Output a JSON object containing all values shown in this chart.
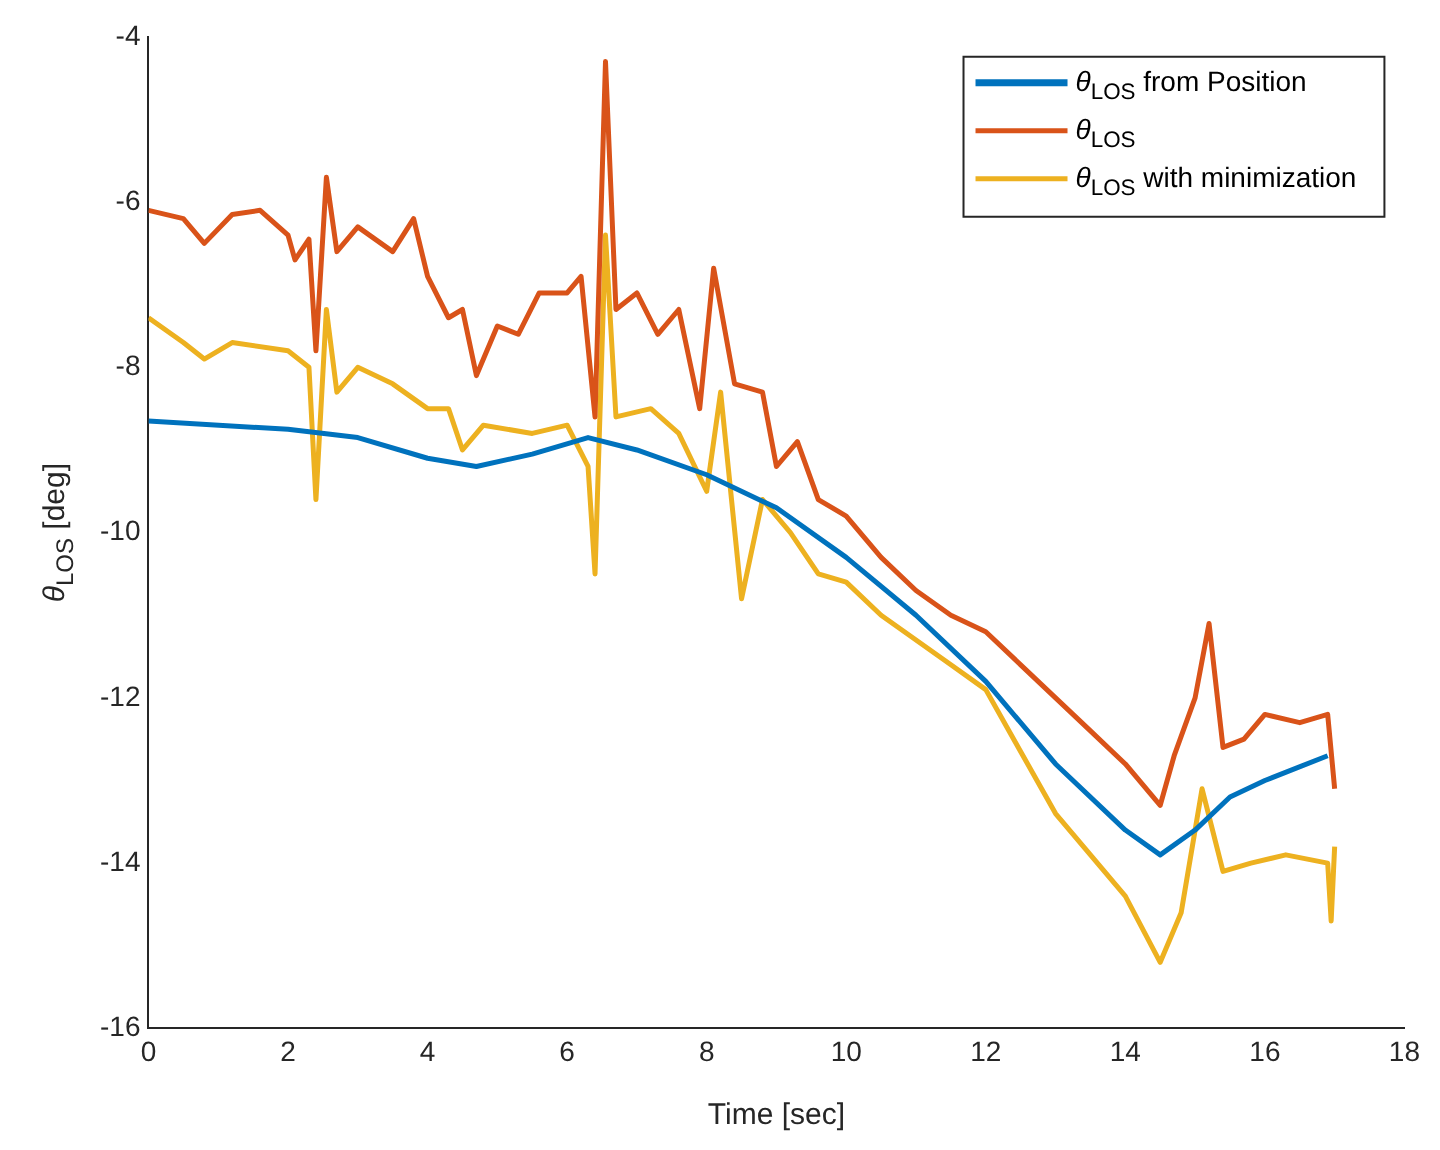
{
  "chart_data": {
    "type": "line",
    "xlabel": "Time [sec]",
    "ylabel": "θ$_{LOS}$ [deg]",
    "xlim": [
      0,
      18
    ],
    "xticks": [
      0,
      2,
      4,
      6,
      8,
      10,
      12,
      14,
      16,
      18
    ],
    "ylim": [
      -16,
      -4
    ],
    "yticks": [
      -16,
      -14,
      -12,
      -10,
      -8,
      -6,
      -4
    ],
    "grid": false,
    "legend": "top right",
    "marker": "none",
    "line_style": "solid",
    "series": [
      {
        "name": "θ$_{LOS}$ from Position",
        "color": "#0072bd",
        "x": [
          0,
          2,
          3,
          4,
          4.7,
          5.5,
          6.3,
          7,
          8,
          9,
          10,
          11,
          12,
          13,
          14,
          14.5,
          15,
          15.5,
          16,
          16.9
        ],
        "values": [
          -8.65,
          -8.75,
          -8.85,
          -9.1,
          -9.2,
          -9.05,
          -8.85,
          -9.0,
          -9.3,
          -9.7,
          -10.3,
          -11.0,
          -11.8,
          -12.8,
          -13.6,
          -13.9,
          -13.6,
          -13.2,
          -13.0,
          -12.7
        ]
      },
      {
        "name": "θ$_{LOS}$",
        "color": "#d95319",
        "x": [
          0,
          0.5,
          0.8,
          1.2,
          1.6,
          2.0,
          2.1,
          2.3,
          2.4,
          2.55,
          2.7,
          3,
          3.5,
          3.8,
          4.0,
          4.3,
          4.5,
          4.7,
          5.0,
          5.3,
          5.6,
          6.0,
          6.2,
          6.4,
          6.55,
          6.7,
          7.0,
          7.3,
          7.6,
          7.9,
          8.1,
          8.4,
          8.8,
          9.0,
          9.3,
          9.6,
          10,
          10.5,
          11,
          11.5,
          12,
          12.5,
          13,
          13.5,
          14,
          14.5,
          14.7,
          15.0,
          15.2,
          15.4,
          15.7,
          16.0,
          16.5,
          16.9,
          17.0
        ],
        "values": [
          -6.1,
          -6.2,
          -6.5,
          -6.15,
          -6.1,
          -6.4,
          -6.7,
          -6.45,
          -7.8,
          -5.7,
          -6.6,
          -6.3,
          -6.6,
          -6.2,
          -6.9,
          -7.4,
          -7.3,
          -8.1,
          -7.5,
          -7.6,
          -7.1,
          -7.1,
          -6.9,
          -8.6,
          -4.3,
          -7.3,
          -7.1,
          -7.6,
          -7.3,
          -8.5,
          -6.8,
          -8.2,
          -8.3,
          -9.2,
          -8.9,
          -9.6,
          -9.8,
          -10.3,
          -10.7,
          -11.0,
          -11.2,
          -11.6,
          -12.0,
          -12.4,
          -12.8,
          -13.3,
          -12.7,
          -12.0,
          -11.1,
          -12.6,
          -12.5,
          -12.2,
          -12.3,
          -12.2,
          -13.1
        ]
      },
      {
        "name": "θ$_{LOS}$ with minimization",
        "color": "#edb120",
        "x": [
          0,
          0.5,
          0.8,
          1.2,
          2.0,
          2.3,
          2.4,
          2.55,
          2.7,
          3.0,
          3.5,
          4.0,
          4.3,
          4.5,
          4.8,
          5.5,
          6.0,
          6.3,
          6.4,
          6.55,
          6.7,
          7.2,
          7.6,
          8.0,
          8.2,
          8.5,
          8.8,
          9.2,
          9.6,
          10,
          10.5,
          11,
          11.5,
          12,
          12.4,
          12.8,
          13,
          13.5,
          14,
          14.5,
          14.8,
          15.1,
          15.4,
          15.8,
          16.3,
          16.9,
          16.95,
          17.0
        ],
        "values": [
          -7.4,
          -7.7,
          -7.9,
          -7.7,
          -7.8,
          -8.0,
          -9.6,
          -7.3,
          -8.3,
          -8.0,
          -8.2,
          -8.5,
          -8.5,
          -9.0,
          -8.7,
          -8.8,
          -8.7,
          -9.2,
          -10.5,
          -6.4,
          -8.6,
          -8.5,
          -8.8,
          -9.5,
          -8.3,
          -10.8,
          -9.6,
          -10.0,
          -10.5,
          -10.6,
          -11.0,
          -11.3,
          -11.6,
          -11.9,
          -12.5,
          -13.1,
          -13.4,
          -13.9,
          -14.4,
          -15.2,
          -14.6,
          -13.1,
          -14.1,
          -14.0,
          -13.9,
          -14.0,
          -14.7,
          -13.8
        ]
      }
    ]
  }
}
